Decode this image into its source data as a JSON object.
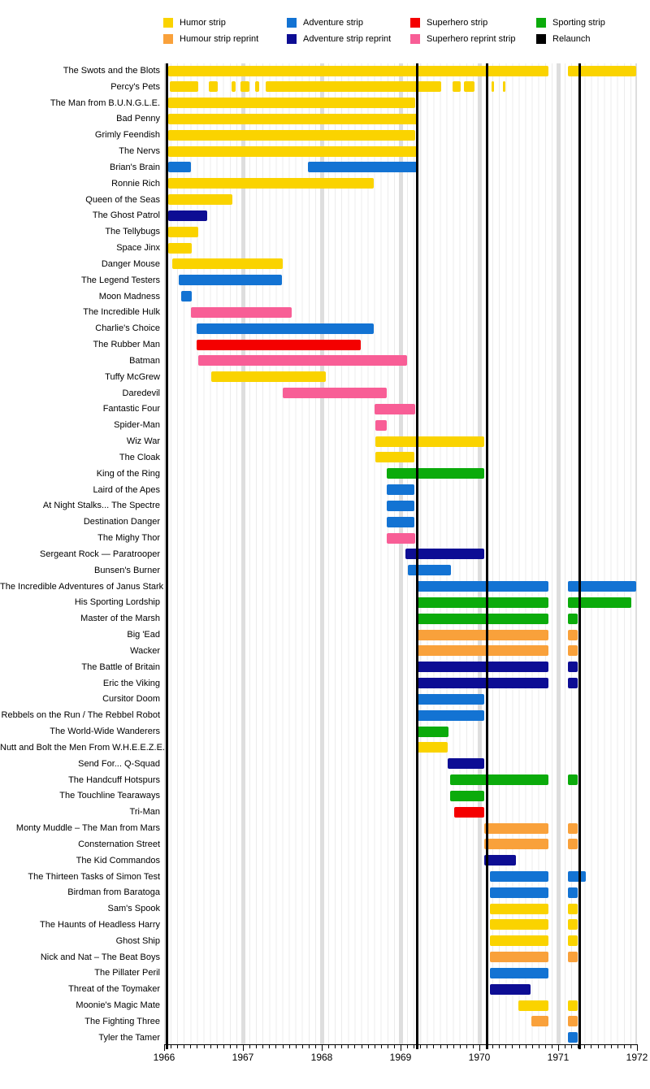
{
  "colors": {
    "humor": "#FAD300",
    "humor_reprint": "#F9A13B",
    "adventure": "#1373D3",
    "adventure_reprint": "#0D0D94",
    "superhero": "#F40000",
    "superhero_reprint": "#F85E96",
    "sporting": "#0BAB0B",
    "relaunch": "#000000",
    "grid_month": "#ececec",
    "grid_year": "#dedede"
  },
  "legend": {
    "items": [
      {
        "label": "Humor strip",
        "key": "humor",
        "col": 0,
        "row": 0
      },
      {
        "label": "Humour strip reprint",
        "key": "humor_reprint",
        "col": 0,
        "row": 1
      },
      {
        "label": "Adventure strip",
        "key": "adventure",
        "col": 1,
        "row": 0
      },
      {
        "label": "Adventure strip reprint",
        "key": "adventure_reprint",
        "col": 1,
        "row": 1
      },
      {
        "label": "Superhero strip",
        "key": "superhero",
        "col": 2,
        "row": 0
      },
      {
        "label": "Superhero reprint strip",
        "key": "superhero_reprint",
        "col": 2,
        "row": 1
      },
      {
        "label": "Sporting strip",
        "key": "sporting",
        "col": 3,
        "row": 0
      },
      {
        "label": "Relaunch",
        "key": "relaunch",
        "col": 3,
        "row": 1
      }
    ]
  },
  "chart_data": {
    "type": "gantt",
    "title": "",
    "x_axis": {
      "min": 1966,
      "max": 1972,
      "tick_years": [
        1966,
        1967,
        1968,
        1969,
        1970,
        1971,
        1972
      ],
      "minor_ticks_per_year": 12
    },
    "relaunch_lines_years": [
      1966.04,
      1969.21,
      1970.1,
      1971.27
    ],
    "rows": [
      {
        "name": "The Swots and the Blots",
        "type": "humor",
        "segments": [
          [
            1966.05,
            1970.88
          ],
          [
            1971.12,
            1971.99
          ]
        ]
      },
      {
        "name": "Percy's Pets",
        "type": "humor",
        "segments": [
          [
            1966.07,
            1966.43
          ],
          [
            1966.57,
            1966.68
          ],
          [
            1966.86,
            1966.91
          ],
          [
            1966.97,
            1967.08
          ],
          [
            1967.15,
            1967.21
          ],
          [
            1967.29,
            1969.52
          ],
          [
            1969.66,
            1969.76
          ],
          [
            1969.8,
            1969.94
          ],
          [
            1970.15,
            1970.19
          ],
          [
            1970.3,
            1970.33
          ]
        ]
      },
      {
        "name": "The Man from B.U.N.G.L.E.",
        "type": "humor",
        "segments": [
          [
            1966.05,
            1969.19
          ]
        ]
      },
      {
        "name": "Bad Penny",
        "type": "humor",
        "segments": [
          [
            1966.05,
            1969.23
          ]
        ]
      },
      {
        "name": "Grimly Feendish",
        "type": "humor",
        "segments": [
          [
            1966.05,
            1969.19
          ]
        ]
      },
      {
        "name": "The Nervs",
        "type": "humor",
        "segments": [
          [
            1966.05,
            1969.21
          ]
        ]
      },
      {
        "name": "Brian's Brain",
        "type": "adventure",
        "segments": [
          [
            1966.05,
            1966.34
          ],
          [
            1967.82,
            1969.21
          ]
        ]
      },
      {
        "name": "Ronnie Rich",
        "type": "humor",
        "segments": [
          [
            1966.05,
            1968.66
          ]
        ]
      },
      {
        "name": "Queen of the Seas",
        "type": "humor",
        "segments": [
          [
            1966.05,
            1966.87
          ]
        ]
      },
      {
        "name": "The Ghost Patrol",
        "type": "adventure_reprint",
        "segments": [
          [
            1966.05,
            1966.55
          ]
        ]
      },
      {
        "name": "The Tellybugs",
        "type": "humor",
        "segments": [
          [
            1966.05,
            1966.43
          ]
        ]
      },
      {
        "name": "Space Jinx",
        "type": "humor",
        "segments": [
          [
            1966.05,
            1966.35
          ]
        ]
      },
      {
        "name": "Danger Mouse",
        "type": "humor",
        "segments": [
          [
            1966.1,
            1967.51
          ]
        ]
      },
      {
        "name": "The Legend Testers",
        "type": "adventure",
        "segments": [
          [
            1966.19,
            1967.5
          ]
        ]
      },
      {
        "name": "Moon Madness",
        "type": "adventure",
        "segments": [
          [
            1966.22,
            1966.35
          ]
        ]
      },
      {
        "name": "The Incredible Hulk",
        "type": "superhero_reprint",
        "segments": [
          [
            1966.34,
            1967.62
          ]
        ]
      },
      {
        "name": "Charlie's Choice",
        "type": "adventure",
        "segments": [
          [
            1966.41,
            1968.66
          ]
        ]
      },
      {
        "name": "The Rubber Man",
        "type": "superhero",
        "segments": [
          [
            1966.41,
            1968.49
          ]
        ]
      },
      {
        "name": "Batman",
        "type": "superhero_reprint",
        "segments": [
          [
            1966.43,
            1969.08
          ]
        ]
      },
      {
        "name": "Tuffy McGrew",
        "type": "humor",
        "segments": [
          [
            1966.6,
            1968.05
          ]
        ]
      },
      {
        "name": "Daredevil",
        "type": "superhero_reprint",
        "segments": [
          [
            1967.5,
            1968.82
          ]
        ]
      },
      {
        "name": "Fantastic Four",
        "type": "superhero_reprint",
        "segments": [
          [
            1968.67,
            1969.19
          ]
        ]
      },
      {
        "name": "Spider-Man",
        "type": "superhero_reprint",
        "segments": [
          [
            1968.68,
            1968.82
          ]
        ]
      },
      {
        "name": "Wiz War",
        "type": "humor",
        "segments": [
          [
            1968.68,
            1970.06
          ]
        ]
      },
      {
        "name": "The Cloak",
        "type": "humor",
        "segments": [
          [
            1968.68,
            1969.17
          ]
        ]
      },
      {
        "name": "King of the Ring",
        "type": "sporting",
        "segments": [
          [
            1968.82,
            1970.06
          ]
        ]
      },
      {
        "name": "Laird of the Apes",
        "type": "adventure",
        "segments": [
          [
            1968.82,
            1969.17
          ]
        ]
      },
      {
        "name": "At Night Stalks... The Spectre",
        "type": "adventure",
        "segments": [
          [
            1968.82,
            1969.17
          ]
        ]
      },
      {
        "name": "Destination Danger",
        "type": "adventure",
        "segments": [
          [
            1968.82,
            1969.17
          ]
        ]
      },
      {
        "name": "The Mighy Thor",
        "type": "superhero_reprint",
        "segments": [
          [
            1968.82,
            1969.19
          ]
        ]
      },
      {
        "name": "Sergeant Rock — Paratrooper",
        "type": "adventure_reprint",
        "segments": [
          [
            1969.06,
            1970.06
          ]
        ]
      },
      {
        "name": "Bunsen's Burner",
        "type": "adventure",
        "segments": [
          [
            1969.09,
            1969.64
          ]
        ]
      },
      {
        "name": "The Incredible Adventures of Janus Stark",
        "type": "adventure",
        "segments": [
          [
            1969.21,
            1970.88
          ],
          [
            1971.12,
            1971.99
          ]
        ]
      },
      {
        "name": "His Sporting Lordship",
        "type": "sporting",
        "segments": [
          [
            1969.21,
            1970.88
          ],
          [
            1971.12,
            1971.93
          ]
        ]
      },
      {
        "name": "Master of the Marsh",
        "type": "sporting",
        "segments": [
          [
            1969.21,
            1970.88
          ],
          [
            1971.12,
            1971.25
          ]
        ]
      },
      {
        "name": "Big 'Ead",
        "type": "humor_reprint",
        "segments": [
          [
            1969.21,
            1970.88
          ],
          [
            1971.12,
            1971.25
          ]
        ]
      },
      {
        "name": "Wacker",
        "type": "humor_reprint",
        "segments": [
          [
            1969.21,
            1970.88
          ],
          [
            1971.12,
            1971.25
          ]
        ]
      },
      {
        "name": "The Battle of Britain",
        "type": "adventure_reprint",
        "segments": [
          [
            1969.21,
            1970.88
          ],
          [
            1971.12,
            1971.25
          ]
        ]
      },
      {
        "name": "Eric the Viking",
        "type": "adventure_reprint",
        "segments": [
          [
            1969.21,
            1970.88
          ],
          [
            1971.12,
            1971.25
          ]
        ]
      },
      {
        "name": "Cursitor Doom",
        "type": "adventure",
        "segments": [
          [
            1969.21,
            1970.06
          ]
        ]
      },
      {
        "name": "Rebbels on the Run / The Rebbel Robot",
        "type": "adventure",
        "segments": [
          [
            1969.21,
            1970.06
          ]
        ]
      },
      {
        "name": "The World-Wide Wanderers",
        "type": "sporting",
        "segments": [
          [
            1969.21,
            1969.61
          ]
        ]
      },
      {
        "name": "Nutt and Bolt the Men From W.H.E.E.Z.E.",
        "type": "humor",
        "segments": [
          [
            1969.21,
            1969.6
          ]
        ]
      },
      {
        "name": "Send For... Q-Squad",
        "type": "adventure_reprint",
        "segments": [
          [
            1969.6,
            1970.06
          ]
        ]
      },
      {
        "name": "The Handcuff Hotspurs",
        "type": "sporting",
        "segments": [
          [
            1969.63,
            1970.88
          ],
          [
            1971.12,
            1971.25
          ]
        ]
      },
      {
        "name": "The Touchline Tearaways",
        "type": "sporting",
        "segments": [
          [
            1969.63,
            1970.06
          ]
        ]
      },
      {
        "name": "Tri-Man",
        "type": "superhero",
        "segments": [
          [
            1969.68,
            1970.06
          ]
        ]
      },
      {
        "name": "Monty Muddle – The Man from Mars",
        "type": "humor_reprint",
        "segments": [
          [
            1970.06,
            1970.88
          ],
          [
            1971.12,
            1971.25
          ]
        ]
      },
      {
        "name": "Consternation Street",
        "type": "humor_reprint",
        "segments": [
          [
            1970.06,
            1970.88
          ],
          [
            1971.12,
            1971.25
          ]
        ]
      },
      {
        "name": "The Kid Commandos",
        "type": "adventure_reprint",
        "segments": [
          [
            1970.06,
            1970.46
          ]
        ]
      },
      {
        "name": "The Thirteen Tasks of Simon Test",
        "type": "adventure",
        "segments": [
          [
            1970.13,
            1970.88
          ],
          [
            1971.12,
            1971.35
          ]
        ]
      },
      {
        "name": "Birdman from Baratoga",
        "type": "adventure",
        "segments": [
          [
            1970.13,
            1970.88
          ],
          [
            1971.12,
            1971.25
          ]
        ]
      },
      {
        "name": "Sam's Spook",
        "type": "humor",
        "segments": [
          [
            1970.13,
            1970.88
          ],
          [
            1971.12,
            1971.25
          ]
        ]
      },
      {
        "name": "The Haunts of Headless Harry",
        "type": "humor",
        "segments": [
          [
            1970.13,
            1970.88
          ],
          [
            1971.12,
            1971.25
          ]
        ]
      },
      {
        "name": "Ghost Ship",
        "type": "humor",
        "segments": [
          [
            1970.13,
            1970.88
          ],
          [
            1971.12,
            1971.25
          ]
        ]
      },
      {
        "name": "Nick and Nat – The Beat Boys",
        "type": "humor_reprint",
        "segments": [
          [
            1970.13,
            1970.88
          ],
          [
            1971.12,
            1971.25
          ]
        ]
      },
      {
        "name": "The Pillater Peril",
        "type": "adventure",
        "segments": [
          [
            1970.13,
            1970.88
          ]
        ]
      },
      {
        "name": "Threat of the Toymaker",
        "type": "adventure_reprint",
        "segments": [
          [
            1970.13,
            1970.65
          ]
        ]
      },
      {
        "name": "Moonie's Magic Mate",
        "type": "humor",
        "segments": [
          [
            1970.49,
            1970.88
          ],
          [
            1971.12,
            1971.25
          ]
        ]
      },
      {
        "name": "The Fighting Three",
        "type": "humor_reprint",
        "segments": [
          [
            1970.66,
            1970.88
          ],
          [
            1971.12,
            1971.25
          ]
        ]
      },
      {
        "name": "Tyler the Tamer",
        "type": "adventure",
        "segments": [
          [
            1971.12,
            1971.25
          ]
        ]
      }
    ]
  }
}
